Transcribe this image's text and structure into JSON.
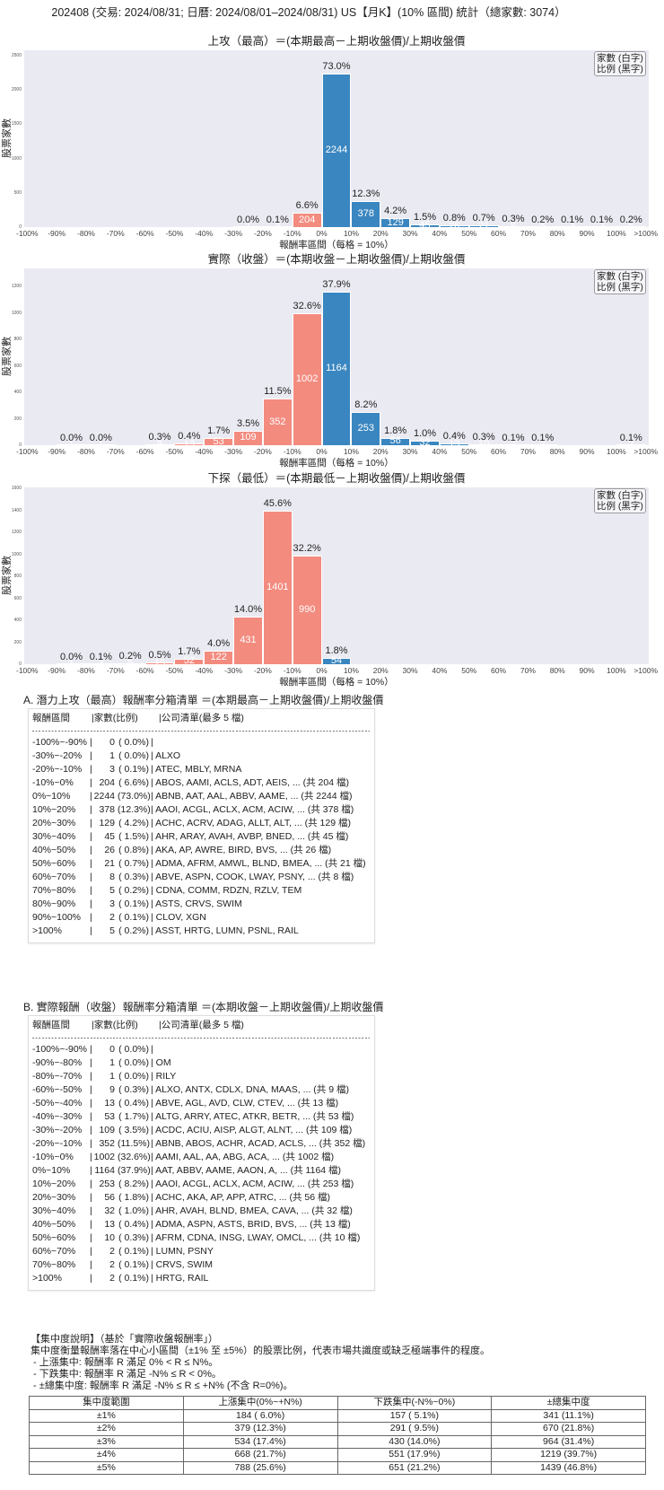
{
  "header": {
    "title": "202408 (交易: 2024/08/31; 日曆: 2024/08/01–2024/08/31) US【月K】(10% 區間) 統計（總家數: 3074）"
  },
  "chart_data": [
    {
      "type": "bar",
      "title": "上攻（最高）＝(本期最高－上期收盤價)/上期收盤價",
      "xlabel": "報酬率區間（每格 = 10%）",
      "ylabel": "股票家數",
      "legend": [
        "家數 (白字)",
        "比例 (黑字)"
      ],
      "categories": [
        "-100%~-90%",
        "-90%~-80%",
        "-80%~-70%",
        "-70%~-60%",
        "-60%~-50%",
        "-50%~-40%",
        "-40%~-30%",
        "-30%~-20%",
        "-20%~-10%",
        "-10%~0%",
        "0%~10%",
        "10%~20%",
        "20%~30%",
        "30%~40%",
        "40%~50%",
        "50%~60%",
        "60%~70%",
        "70%~80%",
        "80%~90%",
        "90%~100%",
        ">100%"
      ],
      "x_tick_labels": [
        "-100%",
        "-90%",
        "-80%",
        "-70%",
        "-60%",
        "-50%",
        "-40%",
        "-30%",
        "-20%",
        "-10%",
        "0%",
        "10%",
        "20%",
        "30%",
        "40%",
        "50%",
        "60%",
        "70%",
        "80%",
        "90%",
        "100%",
        ">100%"
      ],
      "values": [
        0,
        0,
        0,
        0,
        0,
        0,
        0,
        1,
        3,
        204,
        2244,
        378,
        129,
        45,
        26,
        21,
        8,
        5,
        3,
        2,
        5
      ],
      "percents": [
        "",
        "",
        "",
        "",
        "",
        "",
        "",
        "0.0%",
        "0.1%",
        "6.6%",
        "73.0%",
        "12.3%",
        "4.2%",
        "1.5%",
        "0.8%",
        "0.7%",
        "0.3%",
        "0.2%",
        "0.1%",
        "0.1%",
        "0.2%"
      ],
      "ylim": [
        0,
        2580
      ],
      "yticks": [
        0,
        500,
        1000,
        1500,
        2000,
        2500
      ],
      "split_index": 10,
      "colors": {
        "negative": "#f38b7f",
        "positive": "#3a86c0",
        "background": "#eaeaf2"
      },
      "grid": false,
      "legend_position": "upper right"
    },
    {
      "type": "bar",
      "title": "實際（收盤）＝(本期收盤－上期收盤價)/上期收盤價",
      "xlabel": "報酬率區間（每格 = 10%）",
      "ylabel": "股票家數",
      "legend": [
        "家數 (白字)",
        "比例 (黑字)"
      ],
      "categories": [
        "-100%~-90%",
        "-90%~-80%",
        "-80%~-70%",
        "-70%~-60%",
        "-60%~-50%",
        "-50%~-40%",
        "-40%~-30%",
        "-30%~-20%",
        "-20%~-10%",
        "-10%~0%",
        "0%~10%",
        "10%~20%",
        "20%~30%",
        "30%~40%",
        "40%~50%",
        "50%~60%",
        "60%~70%",
        "70%~80%",
        "80%~90%",
        "90%~100%",
        ">100%"
      ],
      "x_tick_labels": [
        "-100%",
        "-90%",
        "-80%",
        "-70%",
        "-60%",
        "-50%",
        "-40%",
        "-30%",
        "-20%",
        "-10%",
        "0%",
        "10%",
        "20%",
        "30%",
        "40%",
        "50%",
        "60%",
        "70%",
        "80%",
        "90%",
        "100%",
        ">100%"
      ],
      "values": [
        0,
        1,
        1,
        0,
        9,
        13,
        53,
        109,
        352,
        1002,
        1164,
        253,
        56,
        32,
        13,
        10,
        2,
        2,
        0,
        0,
        2
      ],
      "percents": [
        "",
        "0.0%",
        "0.0%",
        "",
        "0.3%",
        "0.4%",
        "1.7%",
        "3.5%",
        "11.5%",
        "32.6%",
        "37.9%",
        "8.2%",
        "1.8%",
        "1.0%",
        "0.4%",
        "0.3%",
        "0.1%",
        "0.1%",
        "",
        "",
        "0.1%"
      ],
      "ylim": [
        0,
        1339
      ],
      "yticks": [
        0,
        200,
        400,
        600,
        800,
        1000,
        1200
      ],
      "split_index": 10,
      "colors": {
        "negative": "#f38b7f",
        "positive": "#3a86c0",
        "background": "#eaeaf2"
      },
      "grid": false,
      "legend_position": "upper right"
    },
    {
      "type": "bar",
      "title": "下探（最低）＝(本期最低－上期收盤價)/上期收盤價",
      "xlabel": "報酬率區間（每格 = 10%）",
      "ylabel": "股票家數",
      "legend": [
        "家數 (白字)",
        "比例 (黑字)"
      ],
      "categories": [
        "-100%~-90%",
        "-90%~-80%",
        "-80%~-70%",
        "-70%~-60%",
        "-60%~-50%",
        "-50%~-40%",
        "-40%~-30%",
        "-30%~-20%",
        "-20%~-10%",
        "-10%~0%",
        "0%~10%",
        "10%~20%",
        "20%~30%",
        "30%~40%",
        "40%~50%",
        "50%~60%",
        "60%~70%",
        "70%~80%",
        "80%~90%",
        "90%~100%",
        ">100%"
      ],
      "x_tick_labels": [
        "-100%",
        "-90%",
        "-80%",
        "-70%",
        "-60%",
        "-50%",
        "-40%",
        "-30%",
        "-20%",
        "-10%",
        "0%",
        "10%",
        "20%",
        "30%",
        "40%",
        "50%",
        "60%",
        "70%",
        "80%",
        "90%",
        "100%",
        ">100%"
      ],
      "values": [
        0,
        1,
        3,
        5,
        15,
        52,
        122,
        431,
        1401,
        990,
        54,
        0,
        0,
        0,
        0,
        0,
        0,
        0,
        0,
        0,
        0
      ],
      "percents": [
        "",
        "0.0%",
        "0.1%",
        "0.2%",
        "0.5%",
        "1.7%",
        "4.0%",
        "14.0%",
        "45.6%",
        "32.2%",
        "1.8%",
        "",
        "",
        "",
        "",
        "",
        "",
        "",
        "",
        "",
        ""
      ],
      "ylim": [
        0,
        1611
      ],
      "yticks": [
        0,
        200,
        400,
        600,
        800,
        1000,
        1200,
        1400,
        1600
      ],
      "split_index": 10,
      "colors": {
        "negative": "#f38b7f",
        "positive": "#3a86c0",
        "background": "#eaeaf2"
      },
      "grid": false,
      "legend_position": "upper right"
    }
  ],
  "section_a": {
    "title": "A. 潛力上攻（最高）報酬率分箱清單 ＝(本期最高－上期收盤價)/上期收盤價",
    "headers": [
      "報酬區間",
      "家數(比例)",
      "公司清單(最多 5 檔)"
    ],
    "rows": [
      {
        "range": "-100%~-90%",
        "count": 0,
        "pct": " 0.0%",
        "companies": ""
      },
      {
        "range": "-30%~-20%",
        "count": 1,
        "pct": " 0.0%",
        "companies": "ALXO"
      },
      {
        "range": "-20%~-10%",
        "count": 3,
        "pct": " 0.1%",
        "companies": "ATEC, MBLY, MRNA"
      },
      {
        "range": "-10%~0%",
        "count": 204,
        "pct": " 6.6%",
        "companies": "ABOS, AAMI, ACLS, ADT, AEIS, ... (共 204 檔)"
      },
      {
        "range": "0%~10%",
        "count": 2244,
        "pct": "73.0%",
        "companies": "ABNB, AAT, AAL, ABBV, AAME, ... (共 2244 檔)"
      },
      {
        "range": "10%~20%",
        "count": 378,
        "pct": "12.3%",
        "companies": "AAOI, ACGL, ACLX, ACM, ACIW, ... (共 378 檔)"
      },
      {
        "range": "20%~30%",
        "count": 129,
        "pct": " 4.2%",
        "companies": "ACHC, ACRV, ADAG, ALLT, ALT, ... (共 129 檔)"
      },
      {
        "range": "30%~40%",
        "count": 45,
        "pct": " 1.5%",
        "companies": "AHR, ARAY, AVAH, AVBP, BNED, ... (共 45 檔)"
      },
      {
        "range": "40%~50%",
        "count": 26,
        "pct": " 0.8%",
        "companies": "AKA, AP, AWRE, BIRD, BVS, ... (共 26 檔)"
      },
      {
        "range": "50%~60%",
        "count": 21,
        "pct": " 0.7%",
        "companies": "ADMA, AFRM, AMWL, BLND, BMEA, ... (共 21 檔)"
      },
      {
        "range": "60%~70%",
        "count": 8,
        "pct": " 0.3%",
        "companies": "ABVE, ASPN, COOK, LWAY, PSNY, ... (共 8 檔)"
      },
      {
        "range": "70%~80%",
        "count": 5,
        "pct": " 0.2%",
        "companies": "CDNA, COMM, RDZN, RZLV, TEM"
      },
      {
        "range": "80%~90%",
        "count": 3,
        "pct": " 0.1%",
        "companies": "ASTS, CRVS, SWIM"
      },
      {
        "range": "90%~100%",
        "count": 2,
        "pct": " 0.1%",
        "companies": "CLOV, XGN"
      },
      {
        "range": ">100%",
        "count": 5,
        "pct": " 0.2%",
        "companies": "ASST, HRTG, LUMN, PSNL, RAIL"
      }
    ]
  },
  "section_b": {
    "title": "B. 實際報酬（收盤）報酬率分箱清單 ＝(本期收盤－上期收盤價)/上期收盤價",
    "headers": [
      "報酬區間",
      "家數(比例)",
      "公司清單(最多 5 檔)"
    ],
    "rows": [
      {
        "range": "-100%~-90%",
        "count": 0,
        "pct": " 0.0%",
        "companies": ""
      },
      {
        "range": "-90%~-80%",
        "count": 1,
        "pct": " 0.0%",
        "companies": "OM"
      },
      {
        "range": "-80%~-70%",
        "count": 1,
        "pct": " 0.0%",
        "companies": "RILY"
      },
      {
        "range": "-60%~-50%",
        "count": 9,
        "pct": " 0.3%",
        "companies": "ALXO, ANTX, CDLX, DNA, MAAS, ... (共 9 檔)"
      },
      {
        "range": "-50%~-40%",
        "count": 13,
        "pct": " 0.4%",
        "companies": "ABVE, AGL, AVD, CLW, CTEV, ... (共 13 檔)"
      },
      {
        "range": "-40%~-30%",
        "count": 53,
        "pct": " 1.7%",
        "companies": "ALTG, ARRY, ATEC, ATKR, BETR, ... (共 53 檔)"
      },
      {
        "range": "-30%~-20%",
        "count": 109,
        "pct": " 3.5%",
        "companies": "ACDC, ACIU, AISP, ALGT, ALNT, ... (共 109 檔)"
      },
      {
        "range": "-20%~-10%",
        "count": 352,
        "pct": "11.5%",
        "companies": "ABNB, ABOS, ACHR, ACAD, ACLS, ... (共 352 檔)"
      },
      {
        "range": "-10%~0%",
        "count": 1002,
        "pct": "32.6%",
        "companies": "AAMI, AAL, AA, ABG, ACA, ... (共 1002 檔)"
      },
      {
        "range": "0%~10%",
        "count": 1164,
        "pct": "37.9%",
        "companies": "AAT, ABBV, AAME, AAON, A, ... (共 1164 檔)"
      },
      {
        "range": "10%~20%",
        "count": 253,
        "pct": " 8.2%",
        "companies": "AAOI, ACGL, ACLX, ACM, ACIW, ... (共 253 檔)"
      },
      {
        "range": "20%~30%",
        "count": 56,
        "pct": " 1.8%",
        "companies": "ACHC, AKA, AP, APP, ATRC, ... (共 56 檔)"
      },
      {
        "range": "30%~40%",
        "count": 32,
        "pct": " 1.0%",
        "companies": "AHR, AVAH, BLND, BMEA, CAVA, ... (共 32 檔)"
      },
      {
        "range": "40%~50%",
        "count": 13,
        "pct": " 0.4%",
        "companies": "ADMA, ASPN, ASTS, BRID, BVS, ... (共 13 檔)"
      },
      {
        "range": "50%~60%",
        "count": 10,
        "pct": " 0.3%",
        "companies": "AFRM, CDNA, INSG, LWAY, OMCL, ... (共 10 檔)"
      },
      {
        "range": "60%~70%",
        "count": 2,
        "pct": " 0.1%",
        "companies": "LUMN, PSNY"
      },
      {
        "range": "70%~80%",
        "count": 2,
        "pct": " 0.1%",
        "companies": "CRVS, SWIM"
      },
      {
        "range": ">100%",
        "count": 2,
        "pct": " 0.1%",
        "companies": "HRTG, RAIL"
      }
    ]
  },
  "concentration": {
    "title": "【集中度說明】（基於「實際收盤報酬率」）",
    "description": "集中度衡量報酬率落在中心小區間（±1% 至 ±5%）的股票比例，代表市場共識度或缺乏極端事件的程度。",
    "bullets": [
      " - 上漲集中: 報酬率 R 滿足 0% < R ≤ N%。",
      " - 下跌集中: 報酬率 R 滿足 -N% ≤ R < 0%。",
      " - ±總集中度: 報酬率 R 滿足 -N% ≤ R ≤ +N% (不含 R=0%)。"
    ],
    "table": {
      "headers": [
        "集中度範圍",
        "上漲集中(0%~+N%)",
        "下跌集中(-N%~0%)",
        "±總集中度"
      ],
      "rows": [
        [
          "±1%",
          "184 ( 6.0%)",
          "157 ( 5.1%)",
          "341 (11.1%)"
        ],
        [
          "±2%",
          "379 (12.3%)",
          "291 ( 9.5%)",
          "670 (21.8%)"
        ],
        [
          "±3%",
          "534 (17.4%)",
          "430 (14.0%)",
          "964 (31.4%)"
        ],
        [
          "±4%",
          "668 (21.7%)",
          "551 (17.9%)",
          "1219 (39.7%)"
        ],
        [
          "±5%",
          "788 (25.6%)",
          "651 (21.2%)",
          "1439 (46.8%)"
        ]
      ]
    }
  }
}
